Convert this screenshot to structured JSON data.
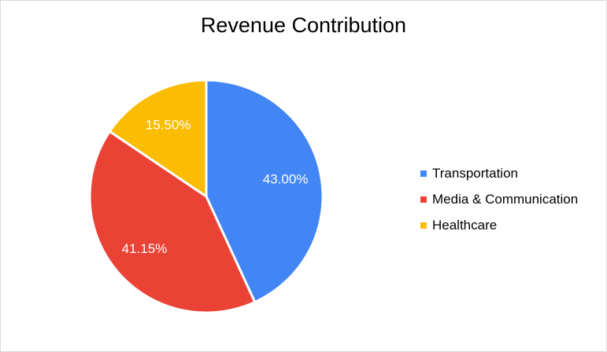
{
  "chart_data": {
    "type": "pie",
    "title": "Revenue Contribution",
    "legend_position": "right",
    "slices": [
      {
        "label": "Transportation",
        "value": 43.0,
        "display": "43.00%",
        "color": "#4285f4"
      },
      {
        "label": "Media & Communication",
        "value": 41.15,
        "display": "41.15%",
        "color": "#ea4335"
      },
      {
        "label": "Healthcare",
        "value": 15.5,
        "display": "15.50%",
        "color": "#fbbc04"
      }
    ]
  }
}
